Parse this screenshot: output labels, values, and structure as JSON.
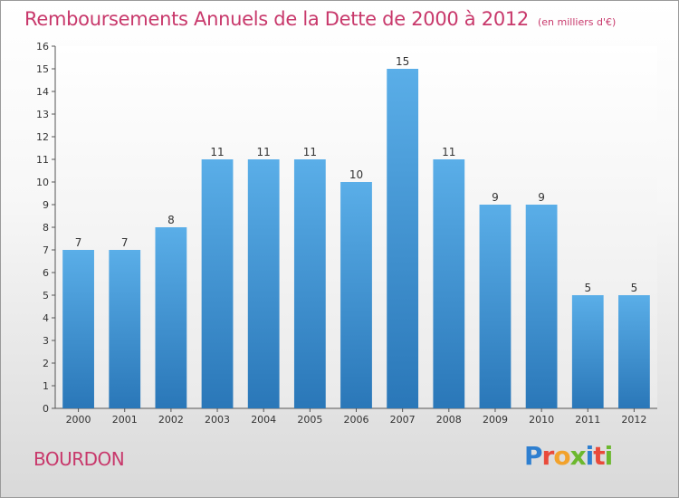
{
  "header": {
    "title": "Remboursements Annuels de la Dette de 2000 à 2012",
    "unit": "(en milliers d'€)"
  },
  "footer": {
    "commune": "BOURDON",
    "logo_letters": [
      "P",
      "r",
      "o",
      "x",
      "i",
      "t",
      "i"
    ],
    "logo_colors": [
      "#2e7fd0",
      "#e94a3a",
      "#f2a22c",
      "#6cb82e",
      "#2e7fd0",
      "#e94a3a",
      "#6cb82e"
    ]
  },
  "chart_data": {
    "type": "bar",
    "categories": [
      "2000",
      "2001",
      "2002",
      "2003",
      "2004",
      "2005",
      "2006",
      "2007",
      "2008",
      "2009",
      "2010",
      "2011",
      "2012"
    ],
    "values": [
      7,
      7,
      8,
      11,
      11,
      11,
      10,
      15,
      11,
      9,
      9,
      5,
      5
    ],
    "data_labels": [
      "7",
      "7",
      "8",
      "11",
      "11",
      "11",
      "10",
      "15",
      "11",
      "9",
      "9",
      "5",
      "5"
    ],
    "yticks": [
      "0",
      "1",
      "2",
      "3",
      "4",
      "5",
      "6",
      "7",
      "8",
      "9",
      "10",
      "11",
      "12",
      "13",
      "14",
      "15",
      "16"
    ],
    "ylim": [
      0,
      16
    ],
    "grid": false,
    "bar_color_top": "#5aaee8",
    "bar_color_bottom": "#2a77b8"
  }
}
